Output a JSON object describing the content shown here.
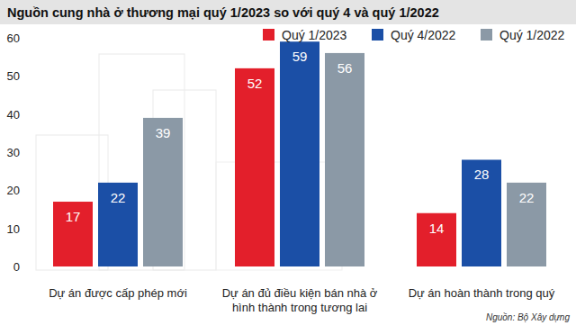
{
  "chart_data": {
    "type": "bar",
    "title": "Nguồn cung nhà ở thương mại quý 1/2023 so với quý 4 và quý 1/2022",
    "source": "Nguồn: Bộ Xây dựng",
    "categories": [
      "Dự án được cấp phép mới",
      "Dự án đủ điều kiện bán nhà ở hình thành trong tương lai",
      "Dự án hoàn thành trong quý"
    ],
    "series": [
      {
        "name": "Quý 1/2023",
        "color": "#e31f2b",
        "values": [
          17,
          52,
          14
        ]
      },
      {
        "name": "Quý 4/2022",
        "color": "#1b4fa6",
        "values": [
          22,
          59,
          28
        ]
      },
      {
        "name": "Quý 1/2022",
        "color": "#8b99a6",
        "values": [
          39,
          56,
          22
        ]
      }
    ],
    "ylim": [
      0,
      60
    ],
    "yticks": [
      0,
      10,
      20,
      30,
      40,
      50,
      60
    ],
    "grid": false,
    "legend": "top-right",
    "data_labels": true
  }
}
